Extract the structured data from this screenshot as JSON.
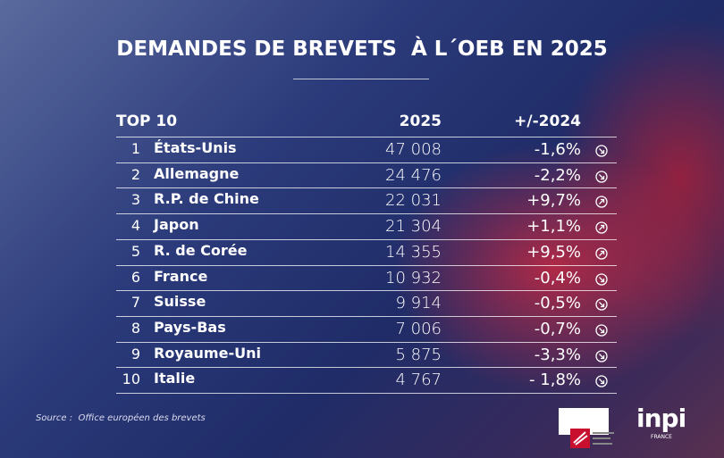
{
  "header": {
    "title": "DEMANDES DE BREVETS  À L´OEB EN 2025"
  },
  "table": {
    "columns": [
      "TOP 10",
      "2025",
      "+/-2024"
    ],
    "rows": [
      [
        "1",
        "États-Unis",
        "47 008",
        "-1,6%"
      ],
      [
        "2",
        "Allemagne",
        "24 476",
        "-2,2%"
      ],
      [
        "3",
        "R.P. de Chine",
        "22 031",
        "+9,7%"
      ],
      [
        "4",
        "Japon",
        "21 304",
        "+1,1%"
      ],
      [
        "5",
        "R. de Corée",
        "14 355",
        "+9,5%"
      ],
      [
        "6",
        "France",
        "10 932",
        "-0,4%"
      ],
      [
        "7",
        "Suisse",
        "9 914",
        "-0,5%"
      ],
      [
        "8",
        "Pays-Bas",
        "7 006",
        "-0,7%"
      ],
      [
        "9",
        "Royaume-Uni",
        "5 875",
        "-3,3%"
      ],
      [
        "10",
        "Italie",
        "4 767",
        "- 1,8%"
      ]
    ]
  },
  "footer": {
    "source": "Source :  Office européen des brevets",
    "logo": "inpi",
    "logo_sub": "FRANCE"
  }
}
